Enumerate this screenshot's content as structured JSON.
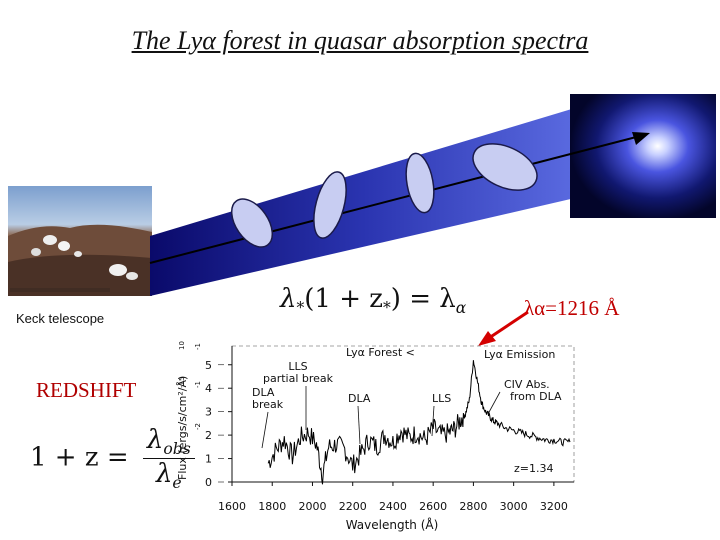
{
  "title": "The Lyα forest in quasar absorption spectra",
  "labels": {
    "keck": "Keck telescope",
    "redshift": "REDSHIFT",
    "lambda_alpha": "λα=1216 Å"
  },
  "formulas": {
    "emission": {
      "lhs_lambda": "λ",
      "lhs_sub": "*",
      "paren": "(1 + z",
      "paren_sub": "*",
      "paren_close": ") = λ",
      "rhs_sub": "α"
    },
    "redshift": {
      "lhs": "1 + z =",
      "num": "λ",
      "num_sub": "obs",
      "den": "λ",
      "den_sub": "e"
    }
  },
  "chart_data": {
    "type": "line",
    "title": "",
    "xlabel": "Wavelength (Å)",
    "ylabel": "Flux (ergs/s/cm²/Å)",
    "xlim": [
      1600,
      3300
    ],
    "ylim": [
      0,
      5.8
    ],
    "xticks": [
      1600,
      1800,
      2000,
      2200,
      2400,
      2600,
      2800,
      3000,
      3200
    ],
    "yticks": [
      0,
      1,
      2,
      3,
      4,
      5
    ],
    "series": [
      {
        "x": [
          1780,
          1820,
          1860,
          1900,
          1940,
          1980,
          2020,
          2050,
          2080,
          2120,
          2160,
          2200,
          2240,
          2280,
          2320,
          2360,
          2400,
          2440,
          2480,
          2520,
          2560,
          2600,
          2640,
          2680,
          2710,
          2740,
          2760,
          2780,
          2800,
          2820,
          2840,
          2860,
          2880,
          2900,
          2920,
          2960,
          3000,
          3040,
          3080,
          3120,
          3160,
          3200,
          3240,
          3280
        ],
        "y": [
          0.8,
          1.4,
          1.8,
          1.1,
          1.9,
          2.1,
          1.6,
          0.3,
          1.5,
          1.6,
          1.4,
          0.7,
          1.2,
          1.8,
          1.5,
          2.0,
          1.7,
          2.2,
          1.9,
          2.1,
          1.8,
          2.3,
          2.0,
          2.1,
          2.3,
          2.7,
          2.9,
          3.5,
          5.2,
          4.3,
          3.4,
          3.0,
          2.8,
          2.6,
          2.5,
          2.3,
          2.2,
          2.1,
          2.0,
          1.9,
          1.8,
          1.8,
          1.7,
          1.7
        ]
      }
    ],
    "annotations": [
      {
        "text": "Lyα Forest",
        "arrow": "<"
      },
      {
        "text": "Lyα Emission"
      },
      {
        "text": "LLS"
      },
      {
        "text": "partial break"
      },
      {
        "text": "DLA"
      },
      {
        "text": "break"
      },
      {
        "text": "DLA"
      },
      {
        "text": "LLS"
      },
      {
        "text": "CIV Abs."
      },
      {
        "text": "from DLA"
      },
      {
        "text": "z=1.34"
      }
    ],
    "y_axis_marks": [
      "10",
      "-15",
      "-1",
      "-2",
      "-1"
    ]
  }
}
